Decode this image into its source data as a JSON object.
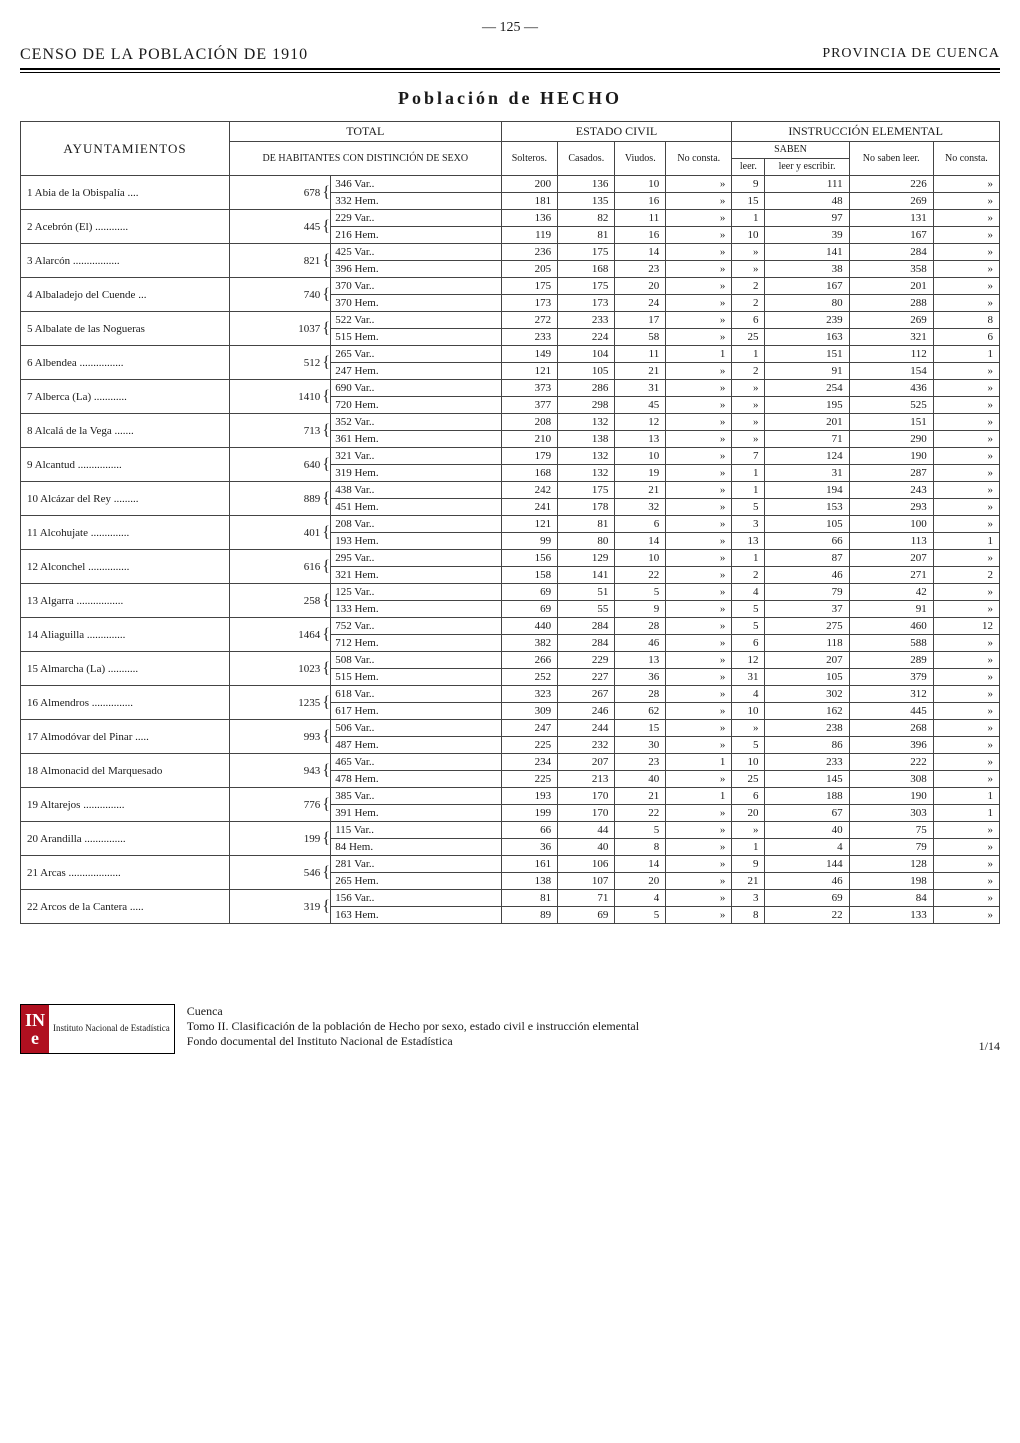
{
  "page_number": "— 125 —",
  "header_left": "CENSO DE LA POBLACIÓN DE 1910",
  "header_right": "PROVINCIA DE CUENCA",
  "main_title": "Población de HECHO",
  "table_headers": {
    "ayuntamientos": "AYUNTAMIENTOS",
    "total": "TOTAL",
    "total_sub": "DE HABITANTES CON DISTINCIÓN DE SEXO",
    "estado_civil": "ESTADO CIVIL",
    "solteros": "Solteros.",
    "casados": "Casados.",
    "viudos": "Viudos.",
    "no_consta_ec": "No consta.",
    "instruccion": "INSTRUCCIÓN ELEMENTAL",
    "saben": "SABEN",
    "leer": "leer.",
    "leer_escribir": "leer y escribir.",
    "no_saben": "No saben leer.",
    "no_consta_ie": "No consta."
  },
  "sex_labels": {
    "var": "Var..",
    "hem": "Hem."
  },
  "rows": [
    {
      "n": 1,
      "name": "Abia de la Obispalía",
      "total": 678,
      "var": [
        200,
        136,
        10,
        "»",
        9,
        111,
        226,
        "»"
      ],
      "hem": [
        181,
        135,
        16,
        "»",
        15,
        48,
        269,
        "»"
      ]
    },
    {
      "n": 2,
      "name": "Acebrón (El)",
      "total": 445,
      "var_t": 229,
      "var": [
        136,
        82,
        11,
        "»",
        1,
        97,
        131,
        "»"
      ],
      "hem_t": 216,
      "hem": [
        119,
        81,
        16,
        "»",
        10,
        39,
        167,
        "»"
      ]
    },
    {
      "n": 3,
      "name": "Alarcón",
      "total": 821,
      "var_t": 425,
      "var": [
        236,
        175,
        14,
        "»",
        "»",
        141,
        284,
        "»"
      ],
      "hem_t": 396,
      "hem": [
        205,
        168,
        23,
        "»",
        "»",
        38,
        358,
        "»"
      ]
    },
    {
      "n": 4,
      "name": "Albaladejo del Cuende",
      "total": 740,
      "var_t": 370,
      "var": [
        175,
        175,
        20,
        "»",
        2,
        167,
        201,
        "»"
      ],
      "hem_t": 370,
      "hem": [
        173,
        173,
        24,
        "»",
        2,
        80,
        288,
        "»"
      ]
    },
    {
      "n": 5,
      "name": "Albalate de las Nogueras",
      "total": 1037,
      "var_t": 522,
      "var": [
        272,
        233,
        17,
        "»",
        6,
        239,
        269,
        8
      ],
      "hem_t": 515,
      "hem": [
        233,
        224,
        58,
        "»",
        25,
        163,
        321,
        6
      ]
    },
    {
      "n": 6,
      "name": "Albendea",
      "total": 512,
      "var_t": 265,
      "var": [
        149,
        104,
        11,
        1,
        1,
        151,
        112,
        1
      ],
      "hem_t": 247,
      "hem": [
        121,
        105,
        21,
        "»",
        2,
        91,
        154,
        "»"
      ]
    },
    {
      "n": 7,
      "name": "Alberca (La)",
      "total": 1410,
      "var_t": 690,
      "var": [
        373,
        286,
        31,
        "»",
        "»",
        254,
        436,
        "»"
      ],
      "hem_t": 720,
      "hem": [
        377,
        298,
        45,
        "»",
        "»",
        195,
        525,
        "»"
      ]
    },
    {
      "n": 8,
      "name": "Alcalá de la Vega",
      "total": 713,
      "var_t": 352,
      "var": [
        208,
        132,
        12,
        "»",
        "»",
        201,
        151,
        "»"
      ],
      "hem_t": 361,
      "hem": [
        210,
        138,
        13,
        "»",
        "»",
        71,
        290,
        "»"
      ]
    },
    {
      "n": 9,
      "name": "Alcantud",
      "total": 640,
      "var_t": 321,
      "var": [
        179,
        132,
        10,
        "»",
        7,
        124,
        190,
        "»"
      ],
      "hem_t": 319,
      "hem": [
        168,
        132,
        19,
        "»",
        1,
        31,
        287,
        "»"
      ]
    },
    {
      "n": 10,
      "name": "Alcázar del Rey",
      "total": 889,
      "var_t": 438,
      "var": [
        242,
        175,
        21,
        "»",
        1,
        194,
        243,
        "»"
      ],
      "hem_t": 451,
      "hem": [
        241,
        178,
        32,
        "»",
        5,
        153,
        293,
        "»"
      ]
    },
    {
      "n": 11,
      "name": "Alcohujate",
      "total": 401,
      "var_t": 208,
      "var": [
        121,
        81,
        6,
        "»",
        3,
        105,
        100,
        "»"
      ],
      "hem_t": 193,
      "hem": [
        99,
        80,
        14,
        "»",
        13,
        66,
        113,
        1
      ]
    },
    {
      "n": 12,
      "name": "Alconchel",
      "total": 616,
      "var_t": 295,
      "var": [
        156,
        129,
        10,
        "»",
        1,
        87,
        207,
        "»"
      ],
      "hem_t": 321,
      "hem": [
        158,
        141,
        22,
        "»",
        2,
        46,
        271,
        2
      ]
    },
    {
      "n": 13,
      "name": "Algarra",
      "total": 258,
      "var_t": 125,
      "var": [
        69,
        51,
        5,
        "»",
        4,
        79,
        42,
        "»"
      ],
      "hem_t": 133,
      "hem": [
        69,
        55,
        9,
        "»",
        5,
        37,
        91,
        "»"
      ]
    },
    {
      "n": 14,
      "name": "Aliaguilla",
      "total": 1464,
      "var_t": 752,
      "var": [
        440,
        284,
        28,
        "»",
        5,
        275,
        460,
        12
      ],
      "hem_t": 712,
      "hem": [
        382,
        284,
        46,
        "»",
        6,
        118,
        588,
        "»"
      ]
    },
    {
      "n": 15,
      "name": "Almarcha (La)",
      "total": 1023,
      "var_t": 508,
      "var": [
        266,
        229,
        13,
        "»",
        12,
        207,
        289,
        "»"
      ],
      "hem_t": 515,
      "hem": [
        252,
        227,
        36,
        "»",
        31,
        105,
        379,
        "»"
      ]
    },
    {
      "n": 16,
      "name": "Almendros",
      "total": 1235,
      "var_t": 618,
      "var": [
        323,
        267,
        28,
        "»",
        4,
        302,
        312,
        "»"
      ],
      "hem_t": 617,
      "hem": [
        309,
        246,
        62,
        "»",
        10,
        162,
        445,
        "»"
      ]
    },
    {
      "n": 17,
      "name": "Almodóvar del Pinar",
      "total": 993,
      "var_t": 506,
      "var": [
        247,
        244,
        15,
        "»",
        "»",
        238,
        268,
        "»"
      ],
      "hem_t": 487,
      "hem": [
        225,
        232,
        30,
        "»",
        5,
        86,
        396,
        "»"
      ]
    },
    {
      "n": 18,
      "name": "Almonacid del Marquesado",
      "total": 943,
      "var_t": 465,
      "var": [
        234,
        207,
        23,
        1,
        10,
        233,
        222,
        "»"
      ],
      "hem_t": 478,
      "hem": [
        225,
        213,
        40,
        "»",
        25,
        145,
        308,
        "»"
      ]
    },
    {
      "n": 19,
      "name": "Altarejos",
      "total": 776,
      "var_t": 385,
      "var": [
        193,
        170,
        21,
        1,
        6,
        188,
        190,
        1
      ],
      "hem_t": 391,
      "hem": [
        199,
        170,
        22,
        "»",
        20,
        67,
        303,
        1
      ]
    },
    {
      "n": 20,
      "name": "Arandilla",
      "total": 199,
      "var_t": 115,
      "var": [
        66,
        44,
        5,
        "»",
        "»",
        40,
        75,
        "»"
      ],
      "hem_t": 84,
      "hem": [
        36,
        40,
        8,
        "»",
        1,
        4,
        79,
        "»"
      ]
    },
    {
      "n": 21,
      "name": "Arcas",
      "total": 546,
      "var_t": 281,
      "var": [
        161,
        106,
        14,
        "»",
        9,
        144,
        128,
        "»"
      ],
      "hem_t": 265,
      "hem": [
        138,
        107,
        20,
        "»",
        21,
        46,
        198,
        "»"
      ]
    },
    {
      "n": 22,
      "name": "Arcos de la Cantera",
      "total": 319,
      "var_t": 156,
      "var": [
        81,
        71,
        4,
        "»",
        3,
        69,
        84,
        "»"
      ],
      "hem_t": 163,
      "hem": [
        89,
        69,
        5,
        "»",
        8,
        22,
        133,
        "»"
      ]
    }
  ],
  "row1_var_t": 346,
  "row1_hem_t": 332,
  "footer": {
    "province": "Cuenca",
    "line1": "Tomo II. Clasificación de la población de Hecho por sexo, estado civil e instrucción elemental",
    "line2": "Fondo documental del Instituto Nacional de Estadística",
    "page": "1/14",
    "ine_label": "Instituto Nacional de Estadística"
  }
}
